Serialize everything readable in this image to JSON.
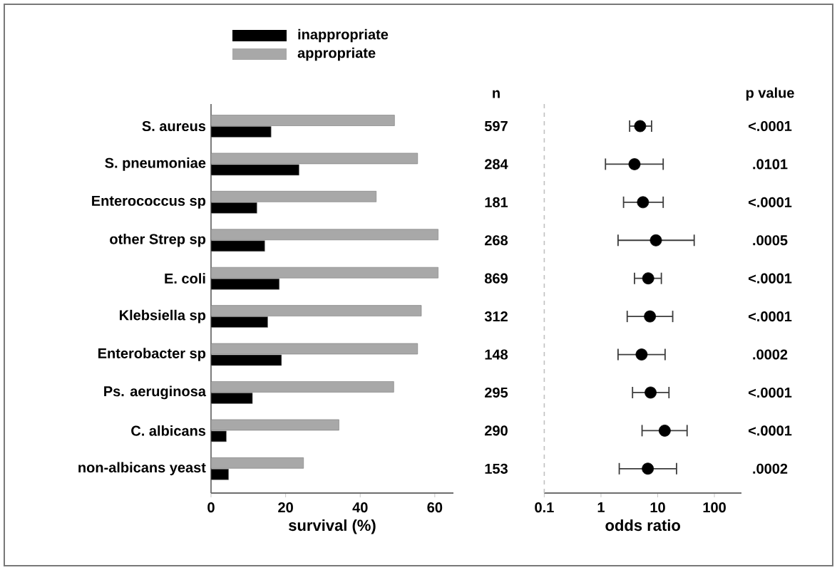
{
  "chart_data": [
    {
      "type": "bar",
      "orientation": "horizontal",
      "categories": [
        "S. aureus",
        "S. pneumoniae",
        "Enterococcus sp",
        "other Strep sp",
        "E. coli",
        "Klebsiella sp",
        "Enterobacter sp",
        "Ps. aeruginosa",
        "C. albicans",
        "non-albicans yeast"
      ],
      "series": [
        {
          "name": "inappropriate",
          "color": "#000000",
          "values": [
            16.1,
            23.6,
            12.3,
            14.4,
            18.3,
            15.2,
            18.9,
            11.1,
            4.1,
            4.7
          ]
        },
        {
          "name": "appropriate",
          "color": "#a8a8a8",
          "values": [
            49.2,
            55.4,
            44.3,
            60.9,
            60.9,
            56.4,
            55.4,
            49,
            34.3,
            24.8
          ]
        }
      ],
      "xlim": [
        0,
        65
      ],
      "xticks": [
        0,
        20,
        40,
        60
      ],
      "xlabel": "survival (%)",
      "legend": "top left"
    },
    {
      "type": "scatter",
      "orientation": "horizontal",
      "categories": [
        null,
        null,
        null,
        null,
        null,
        null,
        null,
        null,
        null,
        null
      ],
      "values": [
        4.9,
        3.9,
        5.5,
        9.3,
        6.8,
        7.3,
        5.2,
        7.5,
        13.3,
        6.7
      ],
      "errors": [
        [
          3.2,
          7.8
        ],
        [
          1.2,
          12.5
        ],
        [
          2.5,
          12.5
        ],
        [
          2.0,
          44
        ],
        [
          3.9,
          11.6
        ],
        [
          2.9,
          18.4
        ],
        [
          2.0,
          13.5
        ],
        [
          3.6,
          15.8
        ],
        [
          5.3,
          33
        ],
        [
          2.1,
          21.5
        ]
      ],
      "color": "#000000",
      "marker": "circle",
      "log": "x",
      "xlim": [
        0.1,
        300
      ],
      "xticks": [
        0.1,
        1,
        10,
        100
      ],
      "xlabel": "odds ratio",
      "ref_lines": [
        {
          "axis": "x",
          "value": 0.1,
          "line_style": "dashed",
          "color": "#c0c0c0"
        }
      ],
      "annotations": [
        "n",
        "597",
        "284",
        "181",
        "268",
        "869",
        "312",
        "148",
        "295",
        "290",
        "153",
        "p value",
        "<.0001",
        ".0101",
        "<.0001",
        ".0005",
        "<.0001",
        "<.0001",
        ".0002",
        "<.0001",
        "<.0001",
        ".0002"
      ]
    }
  ]
}
